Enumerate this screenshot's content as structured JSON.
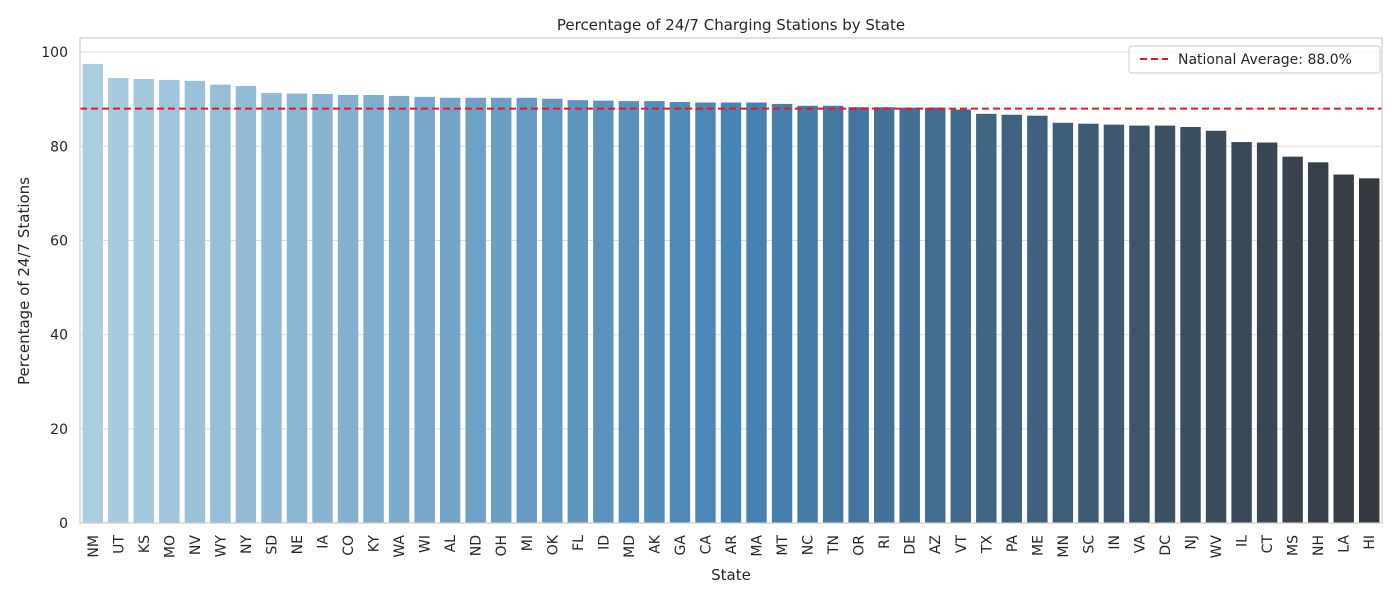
{
  "chart_data": {
    "type": "bar",
    "title": "Percentage of 24/7 Charging Stations by State",
    "xlabel": "State",
    "ylabel": "Percentage of 24/7 Stations",
    "ylim": [
      0,
      103
    ],
    "yticks": [
      0,
      20,
      40,
      60,
      80,
      100
    ],
    "grid": "horizontal",
    "legend_position": "top-right",
    "categories": [
      "NM",
      "UT",
      "KS",
      "MO",
      "NV",
      "WY",
      "NY",
      "SD",
      "NE",
      "IA",
      "CO",
      "KY",
      "WA",
      "WI",
      "AL",
      "ND",
      "OH",
      "MI",
      "OK",
      "FL",
      "ID",
      "MD",
      "AK",
      "GA",
      "CA",
      "AR",
      "MA",
      "MT",
      "NC",
      "TN",
      "OR",
      "RI",
      "DE",
      "AZ",
      "VT",
      "TX",
      "PA",
      "ME",
      "MN",
      "SC",
      "IN",
      "VA",
      "DC",
      "NJ",
      "WV",
      "IL",
      "CT",
      "MS",
      "NH",
      "LA",
      "HI"
    ],
    "values": [
      97.5,
      94.5,
      94.3,
      94.1,
      93.9,
      93.1,
      92.8,
      91.3,
      91.2,
      91.1,
      90.9,
      90.9,
      90.7,
      90.5,
      90.3,
      90.3,
      90.3,
      90.3,
      90.1,
      89.8,
      89.7,
      89.6,
      89.6,
      89.4,
      89.3,
      89.3,
      89.3,
      89.0,
      88.6,
      88.6,
      88.3,
      88.3,
      88.2,
      88.2,
      87.8,
      86.9,
      86.7,
      86.5,
      85.0,
      84.8,
      84.6,
      84.4,
      84.4,
      84.1,
      83.3,
      80.9,
      80.8,
      77.8,
      76.6,
      74.0,
      73.2
    ],
    "reference_line": {
      "value": 88.0,
      "label": "National Average: 88.0%",
      "color": "#e41a1c",
      "style": "dashed"
    },
    "palette": {
      "start": "#abcde0",
      "mid": "#4784b5",
      "end": "#363a40"
    },
    "colors": {
      "grid": "#dcdcdc",
      "axes": "#cccccc",
      "text": "#262626"
    }
  }
}
